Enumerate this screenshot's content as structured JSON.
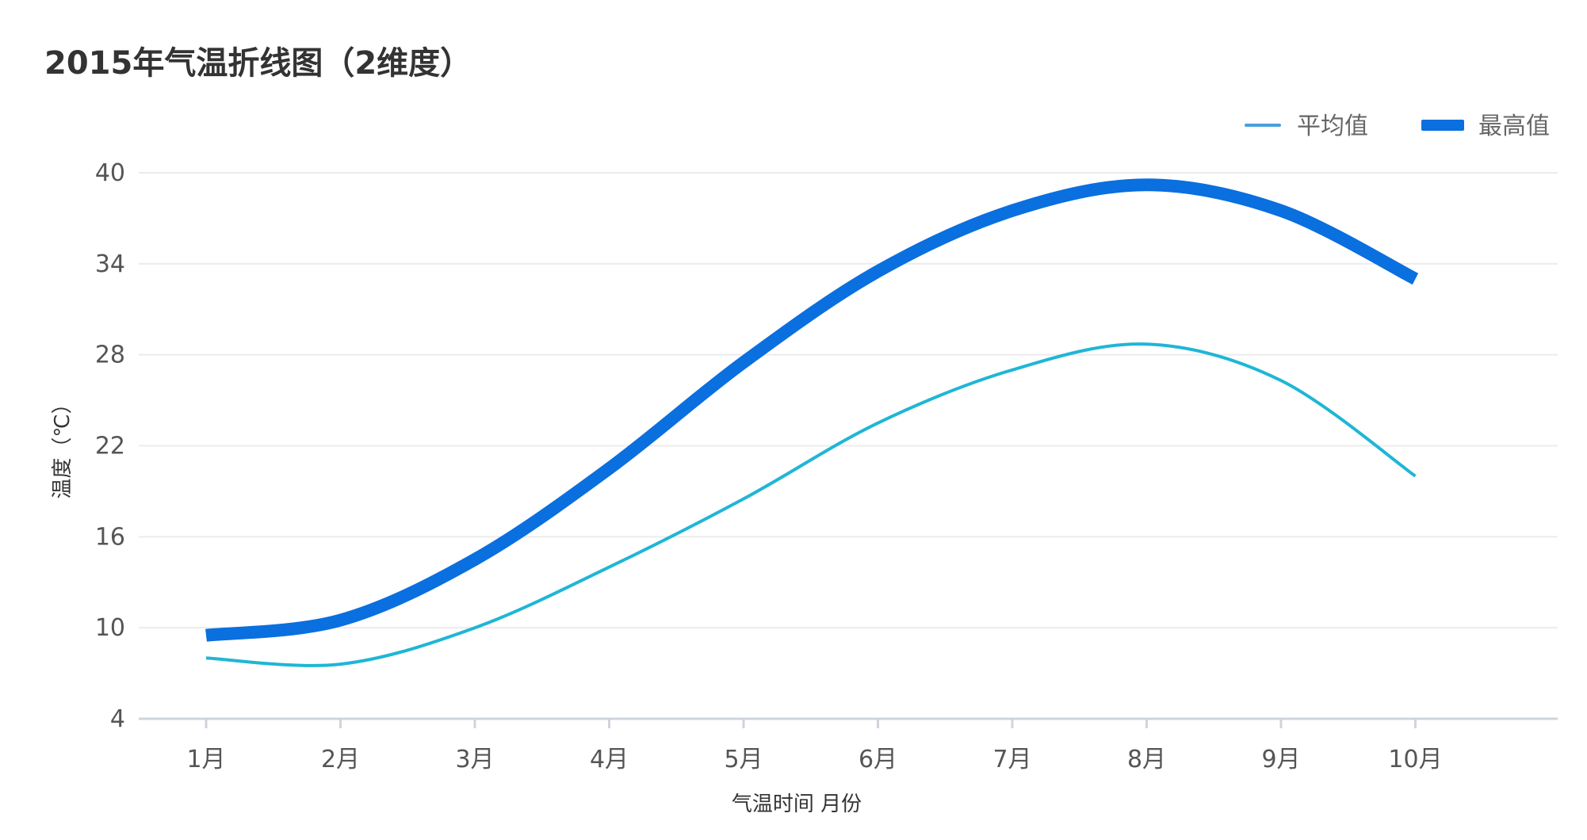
{
  "chart_data": {
    "type": "line",
    "title": "2015年气温折线图（2维度）",
    "xlabel": "气温时间 月份",
    "ylabel": "温度（℃）",
    "categories": [
      "1月",
      "2月",
      "3月",
      "4月",
      "5月",
      "6月",
      "7月",
      "8月",
      "9月",
      "10月"
    ],
    "ylim": [
      4,
      40
    ],
    "yticks": [
      4,
      10,
      16,
      22,
      28,
      34,
      40
    ],
    "grid": true,
    "legend_position": "top-right",
    "series": [
      {
        "name": "平均值",
        "values": [
          8,
          7.6,
          10,
          14,
          18.5,
          23.5,
          27,
          28.7,
          26.3,
          20
        ],
        "color": "#1fb6d6",
        "style": "thin-smooth"
      },
      {
        "name": "最高值",
        "values": [
          9.5,
          10.5,
          14.5,
          20.5,
          27.5,
          33.5,
          37.5,
          39.2,
          37.5,
          33
        ],
        "color": "#0a6fdf",
        "style": "thick-smooth"
      }
    ],
    "legend_colors": [
      "#4a9fdc",
      "#0a6fdf"
    ]
  }
}
